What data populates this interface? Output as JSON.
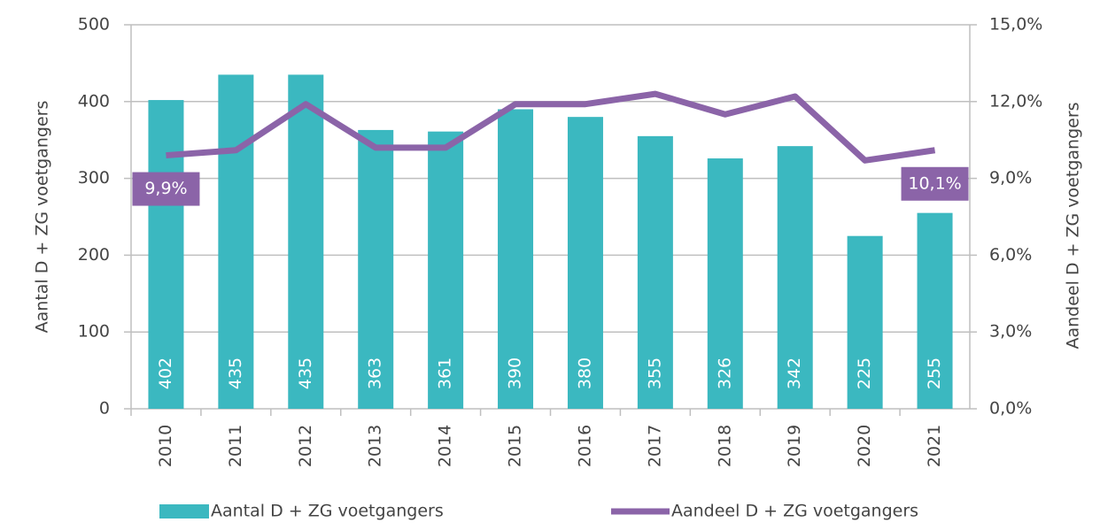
{
  "chart_data": {
    "type": "bar",
    "categories": [
      "2010",
      "2011",
      "2012",
      "2013",
      "2014",
      "2015",
      "2016",
      "2017",
      "2018",
      "2019",
      "2020",
      "2021"
    ],
    "series": [
      {
        "name": "Aantal D + ZG voetgangers",
        "type": "bar",
        "color": "#3bb8c0",
        "values": [
          402,
          435,
          435,
          363,
          361,
          390,
          380,
          355,
          326,
          342,
          225,
          255
        ]
      },
      {
        "name": "Aandeel D + ZG voetgangers",
        "type": "line",
        "axis": "y2",
        "color": "#8b64a8",
        "values": [
          9.9,
          10.1,
          11.9,
          10.2,
          10.2,
          11.9,
          11.9,
          12.3,
          11.5,
          12.2,
          9.7,
          10.1
        ],
        "value_labels": [
          "9,9%",
          null,
          null,
          null,
          null,
          null,
          null,
          null,
          null,
          null,
          null,
          "10,1%"
        ]
      }
    ],
    "ylabel": "Aantal D + ZG voetgangers",
    "y2label": "Aandeel D + ZG voetgangers",
    "ylim": [
      0,
      500
    ],
    "yticks": [
      0,
      100,
      200,
      300,
      400,
      500
    ],
    "y2lim": [
      0,
      15
    ],
    "y2ticks": [
      {
        "value": 0,
        "label": "0,0%"
      },
      {
        "value": 3,
        "label": "3,0%"
      },
      {
        "value": 6,
        "label": "6,0%"
      },
      {
        "value": 9,
        "label": "9,0%"
      },
      {
        "value": 12,
        "label": "12,0%"
      },
      {
        "value": 15,
        "label": "15,0%"
      }
    ],
    "grid": true
  }
}
